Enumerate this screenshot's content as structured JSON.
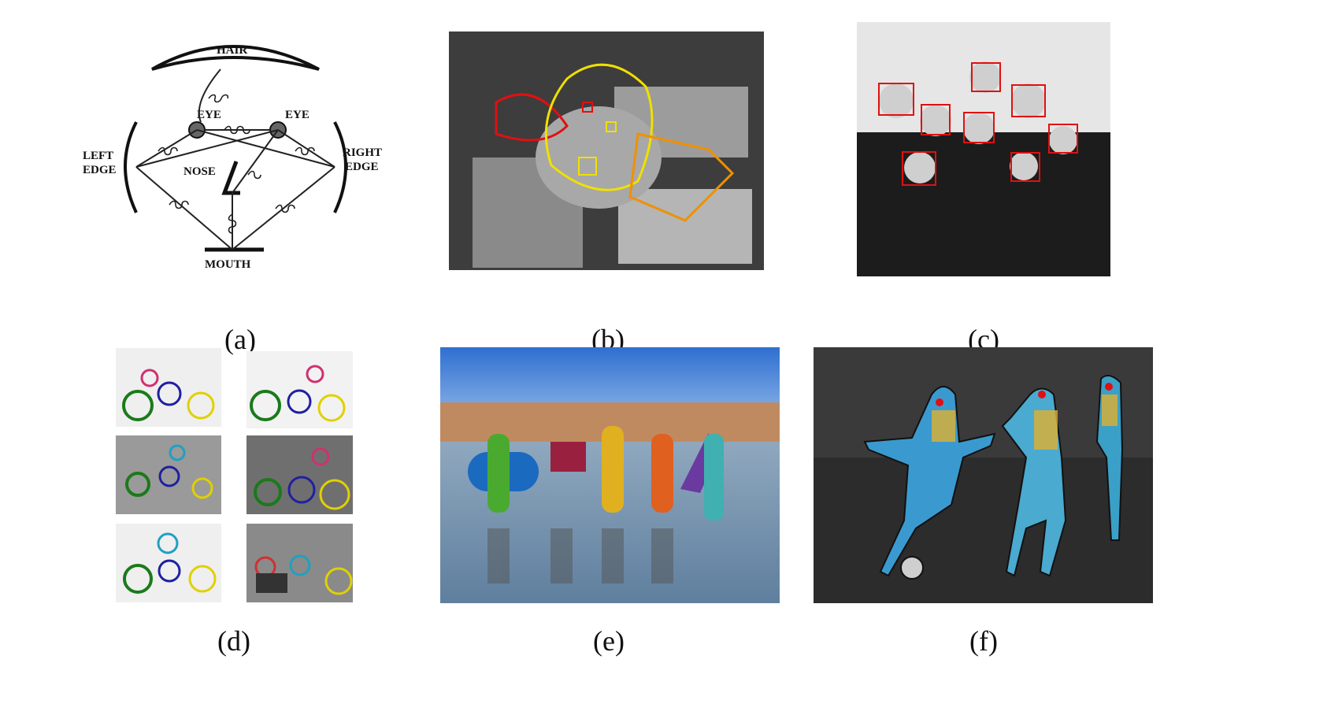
{
  "figure": {
    "panels": [
      {
        "id": "a",
        "caption": "(a)",
        "labels": {
          "hair": "HAIR",
          "eye_left": "EYE",
          "eye_right": "EYE",
          "left_edge_1": "LEFT",
          "left_edge_2": "EDGE",
          "right_edge_1": "RIGHT",
          "right_edge_2": "EDGE",
          "nose": "NOSE",
          "mouth": "MOUTH"
        }
      },
      {
        "id": "b",
        "caption": "(b)"
      },
      {
        "id": "c",
        "caption": "(c)"
      },
      {
        "id": "d",
        "caption": "(d)"
      },
      {
        "id": "e",
        "caption": "(e)"
      },
      {
        "id": "f",
        "caption": "(f)"
      }
    ]
  }
}
